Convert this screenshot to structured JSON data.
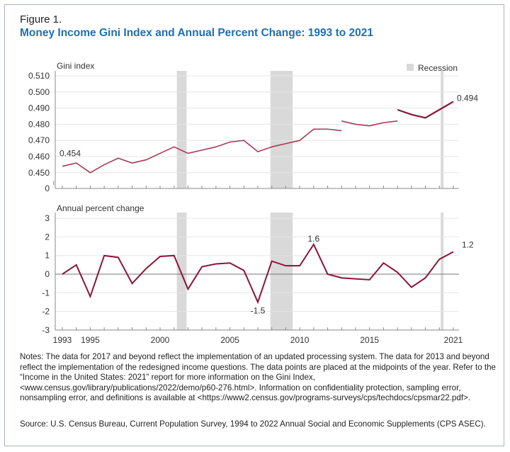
{
  "figure_label": "Figure 1.",
  "title": "Money Income Gini Index and Annual Percent Change: 1993 to 2021",
  "legend": {
    "recession": "Recession"
  },
  "colors": {
    "title": "#1f6fb5",
    "line": "#a63a58",
    "line_dark": "#8b1538",
    "recession": "#d9d9d9"
  },
  "chart_data": [
    {
      "type": "line",
      "ylabel": "Gini index",
      "ylim": [
        0.445,
        0.51
      ],
      "yticks": [
        "0.510",
        "0.500",
        "0.490",
        "0.480",
        "0.470",
        "0.460",
        "0.450",
        "0"
      ],
      "axis_break": true,
      "grid": true,
      "series": [
        {
          "x": [
            1993,
            1994,
            1995,
            1996,
            1997,
            1998,
            1999,
            2000,
            2001,
            2002,
            2003,
            2004,
            2005,
            2006,
            2007,
            2008,
            2009,
            2010,
            2011,
            2012,
            2013
          ],
          "values": [
            0.454,
            0.456,
            0.45,
            0.455,
            0.459,
            0.456,
            0.458,
            0.462,
            0.466,
            0.462,
            0.464,
            0.466,
            0.469,
            0.47,
            0.463,
            0.466,
            0.468,
            0.47,
            0.477,
            0.477,
            0.476
          ]
        },
        {
          "x": [
            2013,
            2014,
            2015,
            2016,
            2017
          ],
          "values": [
            0.482,
            0.48,
            0.479,
            0.481,
            0.482
          ]
        },
        {
          "x": [
            2017,
            2018,
            2019,
            2020,
            2021
          ],
          "values": [
            0.489,
            0.486,
            0.484,
            0.489,
            0.494
          ]
        }
      ],
      "annotations": [
        {
          "x": 1993,
          "label": "0.454"
        },
        {
          "x": 2021,
          "label": "0.494"
        }
      ],
      "recessions": [
        [
          2001.2,
          2001.9
        ],
        [
          2007.9,
          2009.5
        ],
        [
          2020.1,
          2020.3
        ]
      ]
    },
    {
      "type": "line",
      "ylabel": "Annual percent change",
      "ylim": [
        -3,
        3
      ],
      "yticks": [
        "3",
        "2",
        "1",
        "0",
        "-1",
        "-2",
        "-3"
      ],
      "xticks": [
        "1993",
        "1995",
        "2000",
        "2005",
        "2010",
        "2015",
        "2021"
      ],
      "grid": true,
      "series": [
        {
          "x": [
            1993,
            1994,
            1995,
            1996,
            1997,
            1998,
            1999,
            2000,
            2001,
            2002,
            2003,
            2004,
            2005,
            2006,
            2007,
            2008,
            2009,
            2010,
            2011,
            2012,
            2013,
            2014,
            2015,
            2016,
            2017,
            2018,
            2019,
            2020,
            2021
          ],
          "values": [
            0,
            0.5,
            -1.2,
            1.0,
            0.9,
            -0.5,
            0.3,
            0.95,
            1.0,
            -0.8,
            0.4,
            0.55,
            0.6,
            0.2,
            -1.5,
            0.7,
            0.45,
            0.45,
            1.6,
            0,
            -0.2,
            -0.25,
            -0.3,
            0.6,
            0.1,
            -0.7,
            -0.2,
            0.8,
            1.2
          ]
        }
      ],
      "annotations": [
        {
          "x": 2007,
          "label": "-1.5"
        },
        {
          "x": 2011,
          "label": "1.6"
        },
        {
          "x": 2021,
          "label": "1.2"
        }
      ],
      "recessions": [
        [
          2001.2,
          2001.9
        ],
        [
          2007.9,
          2009.5
        ],
        [
          2020.1,
          2020.3
        ]
      ]
    }
  ],
  "notes": "Notes: The data for 2017 and beyond reflect the implementation of an updated processing system. The data for 2013 and beyond reflect the implementation of the redesigned income questions. The data points are placed at the midpoints of the year. Refer to the “Income in the United States: 2021” report for more information on the Gini Index, <www.census.gov/library/publications/2022/demo/p60-276.html>. Information on confidentiality protection, sampling error, nonsampling error, and definitions is available at <https://www2.census.gov/programs-surveys/cps/techdocs/cpsmar22.pdf>.",
  "source": "Source: U.S. Census Bureau, Current Population Survey, 1994 to 2022 Annual Social and Economic Supplements (CPS ASEC)."
}
